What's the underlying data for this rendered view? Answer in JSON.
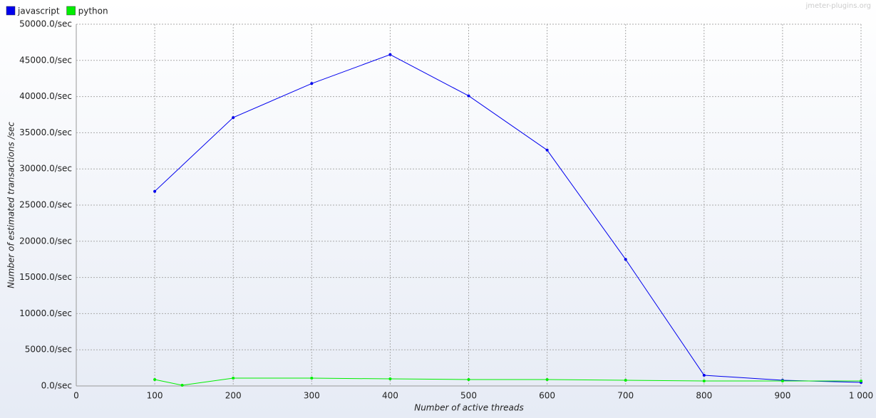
{
  "chart_data": {
    "type": "line",
    "watermark": "jmeter-plugins.org",
    "xlabel": "Number of active threads",
    "ylabel": "Number of estimated transactions /sec",
    "series": [
      {
        "name": "javascript",
        "color": "#0000ee",
        "x": [
          100,
          200,
          300,
          400,
          500,
          600,
          700,
          800,
          900,
          1000
        ],
        "values": [
          26900,
          37100,
          41800,
          45800,
          40100,
          32600,
          17500,
          1480,
          790,
          490
        ]
      },
      {
        "name": "python",
        "color": "#00ee00",
        "x": [
          100,
          135,
          200,
          300,
          400,
          500,
          600,
          700,
          800,
          900,
          1000
        ],
        "values": [
          890,
          100,
          1080,
          1080,
          980,
          890,
          890,
          790,
          690,
          690,
          690
        ]
      }
    ],
    "xlim": [
      0,
      1000
    ],
    "xticks": [
      0,
      100,
      200,
      300,
      400,
      500,
      600,
      700,
      800,
      900,
      {
        "value": 1000,
        "label": "1 000"
      }
    ],
    "ylim": [
      0,
      50000
    ],
    "yticks": [
      {
        "value": 0,
        "label": "0.0/sec"
      },
      {
        "value": 5000,
        "label": "5000.0/sec"
      },
      {
        "value": 10000,
        "label": "10000.0/sec"
      },
      {
        "value": 15000,
        "label": "15000.0/sec"
      },
      {
        "value": 20000,
        "label": "20000.0/sec"
      },
      {
        "value": 25000,
        "label": "25000.0/sec"
      },
      {
        "value": 30000,
        "label": "30000.0/sec"
      },
      {
        "value": 35000,
        "label": "35000.0/sec"
      },
      {
        "value": 40000,
        "label": "40000.0/sec"
      },
      {
        "value": 45000,
        "label": "45000.0/sec"
      },
      {
        "value": 50000,
        "label": "50000.0/sec"
      }
    ],
    "grid": true,
    "legend": "top-left"
  }
}
